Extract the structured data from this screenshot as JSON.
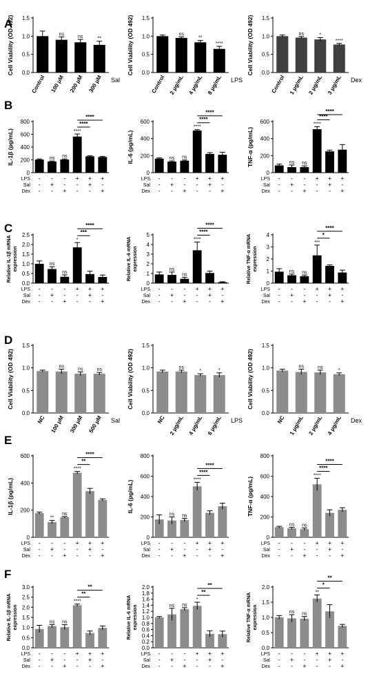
{
  "panel_letters": [
    "A",
    "B",
    "C",
    "D",
    "E",
    "F"
  ],
  "condition_row_labels": [
    "LPS",
    "Sal",
    "Dex"
  ],
  "condition_groups": [
    [
      "-",
      "-",
      "-"
    ],
    [
      "-",
      "+",
      "-"
    ],
    [
      "-",
      "-",
      "+"
    ],
    [
      "+",
      "-",
      "-"
    ],
    [
      "+",
      "+",
      "-"
    ],
    [
      "+",
      "-",
      "+"
    ]
  ],
  "colors": {
    "dark_bars": "#000000",
    "gray_bars": "#8c8c8c",
    "dex_bars_A": "#404040"
  },
  "chart_data": [
    {
      "type": "bar",
      "ylabel": "Cell Viability (OD 492)",
      "ylim": [
        0,
        1.5
      ],
      "yticks": [
        0,
        0.5,
        1.0,
        1.5
      ],
      "ytick_labels": [
        "0.0",
        "0.5",
        "1.0",
        "1.5"
      ],
      "agent": "Sal",
      "categories": [
        "Control",
        "100 μM",
        "200 μM",
        "300 μM"
      ],
      "values": [
        1.0,
        0.9,
        0.83,
        0.76
      ],
      "errors": [
        0.14,
        0.08,
        0.08,
        0.1
      ],
      "sig": [
        "",
        "ns",
        "ns",
        "**"
      ]
    },
    {
      "type": "bar",
      "ylabel": "Cell Viability (OD 492)",
      "ylim": [
        0,
        1.5
      ],
      "yticks": [
        0,
        0.5,
        1.0,
        1.5
      ],
      "ytick_labels": [
        "0.0",
        "0.5",
        "1.0",
        "1.5"
      ],
      "agent": "LPS",
      "categories": [
        "Control",
        "2 μg/mL",
        "4 μg/mL",
        "8 μg/mL"
      ],
      "values": [
        1.0,
        0.95,
        0.83,
        0.65
      ],
      "errors": [
        0.03,
        0.03,
        0.05,
        0.07
      ],
      "sig": [
        "",
        "ns",
        "**",
        "****"
      ]
    },
    {
      "type": "bar",
      "ylabel": "Cell Viability (OD 492)",
      "ylim": [
        0,
        1.5
      ],
      "yticks": [
        0,
        0.5,
        1.0,
        1.5
      ],
      "ytick_labels": [
        "0.0",
        "0.5",
        "1.0",
        "1.5"
      ],
      "agent": "Dex",
      "categories": [
        "Control",
        "1 μg/mL",
        "2 μg/mL",
        "3 μg/mL"
      ],
      "values": [
        1.0,
        0.96,
        0.91,
        0.77
      ],
      "errors": [
        0.03,
        0.03,
        0.05,
        0.03
      ],
      "sig": [
        "",
        "ns",
        "*",
        "****"
      ]
    },
    {
      "type": "bar",
      "ylabel": "IL-1β (pg/mL)",
      "ylim": [
        0,
        800
      ],
      "yticks": [
        0,
        200,
        400,
        600,
        800
      ],
      "ytick_labels": [
        "0",
        "200",
        "400",
        "600",
        "800"
      ],
      "values": [
        205,
        175,
        205,
        565,
        255,
        245
      ],
      "errors": [
        10,
        8,
        10,
        40,
        10,
        10
      ],
      "sig": [
        "",
        "ns",
        "ns",
        "****",
        "",
        ""
      ],
      "brackets": [
        [
          "****",
          3,
          4
        ],
        [
          "****",
          3,
          5
        ]
      ]
    },
    {
      "type": "bar",
      "ylabel": "IL-6 (pg/mL)",
      "ylim": [
        0,
        600
      ],
      "yticks": [
        0,
        200,
        400,
        600
      ],
      "ytick_labels": [
        "0",
        "200",
        "400",
        "600"
      ],
      "values": [
        165,
        130,
        140,
        495,
        220,
        210
      ],
      "errors": [
        8,
        8,
        8,
        10,
        15,
        30
      ],
      "sig": [
        "",
        "ns",
        "ns",
        "****",
        "",
        ""
      ],
      "brackets": [
        [
          "****",
          3,
          4
        ],
        [
          "****",
          3,
          5
        ]
      ]
    },
    {
      "type": "bar",
      "ylabel": "TNF-α (pg/mL)",
      "ylim": [
        0,
        600
      ],
      "yticks": [
        0,
        200,
        400,
        600
      ],
      "ytick_labels": [
        "0",
        "200",
        "400",
        "600"
      ],
      "values": [
        85,
        65,
        65,
        510,
        250,
        270
      ],
      "errors": [
        15,
        25,
        15,
        30,
        15,
        60
      ],
      "sig": [
        "",
        "ns",
        "ns",
        "****",
        "",
        ""
      ],
      "brackets": [
        [
          "****",
          3,
          4
        ],
        [
          "****",
          3,
          5
        ]
      ]
    },
    {
      "type": "bar",
      "ylabel": "Relative IL-1β mRNA expression",
      "ylim": [
        0,
        2.5
      ],
      "yticks": [
        0,
        0.5,
        1.0,
        1.5,
        2.0,
        2.5
      ],
      "ytick_labels": [
        "0.0",
        "0.5",
        "1.0",
        "1.5",
        "2.0",
        "2.5"
      ],
      "values": [
        1.0,
        0.73,
        0.33,
        1.85,
        0.47,
        0.32
      ],
      "errors": [
        0.15,
        0.12,
        0.1,
        0.25,
        0.15,
        0.1
      ],
      "sig": [
        "",
        "ns",
        "ns",
        "*",
        "",
        ""
      ],
      "brackets": [
        [
          "***",
          3,
          4
        ],
        [
          "****",
          3,
          5
        ]
      ]
    },
    {
      "type": "bar",
      "ylabel": "Relative IL-6 mRNA expression",
      "ylim": [
        0,
        5
      ],
      "yticks": [
        0,
        1,
        2,
        3,
        4,
        5
      ],
      "ytick_labels": [
        "0",
        "1",
        "2",
        "3",
        "4",
        "5"
      ],
      "values": [
        0.9,
        0.85,
        0.45,
        3.4,
        1.05,
        0.1
      ],
      "errors": [
        0.25,
        0.3,
        0.15,
        0.85,
        0.2,
        0.05
      ],
      "sig": [
        "",
        "ns",
        "ns",
        "****",
        "",
        ""
      ],
      "brackets": [
        [
          "****",
          3,
          4
        ],
        [
          "****",
          3,
          5
        ]
      ]
    },
    {
      "type": "bar",
      "ylabel": "Relative TNF-α mRNA expression",
      "ylim": [
        0,
        4
      ],
      "yticks": [
        0,
        1,
        2,
        3,
        4
      ],
      "ytick_labels": [
        "0",
        "1",
        "2",
        "3",
        "4"
      ],
      "values": [
        0.95,
        0.65,
        0.57,
        2.3,
        1.43,
        0.88
      ],
      "errors": [
        0.25,
        0.1,
        0.1,
        0.85,
        0.08,
        0.2
      ],
      "sig": [
        "",
        "ns",
        "ns",
        "***",
        "",
        ""
      ],
      "brackets": [
        [
          "*",
          3,
          4
        ],
        [
          "****",
          3,
          5
        ]
      ]
    },
    {
      "type": "bar",
      "ylabel": "Cell Viability (OD 492)",
      "ylim": [
        0,
        1.5
      ],
      "yticks": [
        0,
        0.5,
        1.0,
        1.5
      ],
      "ytick_labels": [
        "0.0",
        "0.5",
        "1.0",
        "1.5"
      ],
      "agent": "Sal",
      "categories": [
        "NC",
        "100 μM",
        "300 μM",
        "500 μM"
      ],
      "values": [
        0.93,
        0.92,
        0.87,
        0.87
      ],
      "errors": [
        0.02,
        0.05,
        0.04,
        0.03
      ],
      "sig": [
        "",
        "ns",
        "ns",
        "ns"
      ]
    },
    {
      "type": "bar",
      "ylabel": "Cell Viability (OD 492)",
      "ylim": [
        0,
        1.5
      ],
      "yticks": [
        0,
        0.5,
        1.0,
        1.5
      ],
      "ytick_labels": [
        "0.0",
        "0.5",
        "1.0",
        "1.5"
      ],
      "agent": "LPS",
      "categories": [
        "NC",
        "2 μg/mL",
        "4 μg/mL",
        "6 μg/mL"
      ],
      "values": [
        0.92,
        0.92,
        0.84,
        0.84
      ],
      "errors": [
        0.03,
        0.03,
        0.03,
        0.05
      ],
      "sig": [
        "",
        "ns",
        "*",
        "*"
      ]
    },
    {
      "type": "bar",
      "ylabel": "Cell Viability (OD 492)",
      "ylim": [
        0,
        1.5
      ],
      "yticks": [
        0,
        0.5,
        1.0,
        1.5
      ],
      "ytick_labels": [
        "0.0",
        "0.5",
        "1.0",
        "1.5"
      ],
      "agent": "Dex",
      "categories": [
        "NC",
        "1 μg/mL",
        "2 μg/mL",
        "4 μg/mL"
      ],
      "values": [
        0.94,
        0.91,
        0.9,
        0.86
      ],
      "errors": [
        0.03,
        0.06,
        0.05,
        0.03
      ],
      "sig": [
        "",
        "ns",
        "ns",
        "*"
      ]
    },
    {
      "type": "bar",
      "ylabel": "IL-1β (pg/mL)",
      "ylim": [
        0,
        600
      ],
      "yticks": [
        0,
        200,
        400,
        600
      ],
      "ytick_labels": [
        "0",
        "200",
        "400",
        "600"
      ],
      "values": [
        178,
        112,
        148,
        475,
        340,
        275
      ],
      "errors": [
        8,
        12,
        5,
        10,
        20,
        8
      ],
      "sig": [
        "",
        "**",
        "ns",
        "****",
        "",
        ""
      ],
      "brackets": [
        [
          "**",
          3,
          4
        ],
        [
          "****",
          3,
          5
        ]
      ]
    },
    {
      "type": "bar",
      "ylabel": "IL-6 (pg/mL)",
      "ylim": [
        0,
        800
      ],
      "yticks": [
        0,
        200,
        400,
        600,
        800
      ],
      "ytick_labels": [
        "0",
        "200",
        "400",
        "600",
        "800"
      ],
      "values": [
        175,
        165,
        170,
        500,
        240,
        305
      ],
      "errors": [
        45,
        35,
        15,
        40,
        20,
        30
      ],
      "sig": [
        "",
        "ns",
        "ns",
        "****",
        "",
        ""
      ],
      "brackets": [
        [
          "****",
          3,
          4
        ],
        [
          "****",
          3,
          5
        ]
      ]
    },
    {
      "type": "bar",
      "ylabel": "TNF-α (pg/mL)",
      "ylim": [
        0,
        800
      ],
      "yticks": [
        0,
        200,
        400,
        600,
        800
      ],
      "ytick_labels": [
        "0",
        "200",
        "400",
        "600",
        "800"
      ],
      "values": [
        100,
        88,
        80,
        520,
        240,
        270
      ],
      "errors": [
        8,
        10,
        12,
        60,
        30,
        20
      ],
      "sig": [
        "",
        "ns",
        "ns",
        "****",
        "",
        ""
      ],
      "brackets": [
        [
          "****",
          3,
          4
        ],
        [
          "****",
          3,
          5
        ]
      ]
    },
    {
      "type": "bar",
      "ylabel": "Relative IL-1β mRNA expression",
      "ylim": [
        0,
        3.0
      ],
      "yticks": [
        0,
        0.5,
        1.0,
        1.5,
        2.0,
        2.5,
        3.0
      ],
      "ytick_labels": [
        "0.0",
        "0.5",
        "1.0",
        "1.5",
        "2.0",
        "2.5",
        "3.0"
      ],
      "values": [
        0.93,
        1.07,
        1.02,
        2.1,
        0.73,
        0.98
      ],
      "errors": [
        0.18,
        0.08,
        0.12,
        0.06,
        0.1,
        0.1
      ],
      "sig": [
        "",
        "ns",
        "ns",
        "****",
        "",
        ""
      ],
      "brackets": [
        [
          "**",
          3,
          4
        ],
        [
          "**",
          3,
          5
        ]
      ]
    },
    {
      "type": "bar",
      "ylabel": "Relative IL-6 mRNA expression",
      "ylim": [
        0,
        2.0
      ],
      "yticks": [
        0,
        0.2,
        0.4,
        0.6,
        0.8,
        1.0,
        1.2,
        1.4,
        1.6,
        1.8,
        2.0
      ],
      "ytick_labels": [
        "0.0",
        "0.2",
        "0.4",
        "0.6",
        "0.8",
        "1.0",
        "1.2",
        "1.4",
        "1.6",
        "1.8",
        "2.0"
      ],
      "values": [
        1.0,
        1.1,
        1.27,
        1.38,
        0.46,
        0.45
      ],
      "errors": [
        0.03,
        0.2,
        0.05,
        0.12,
        0.1,
        0.1
      ],
      "sig": [
        "",
        "ns",
        "ns",
        "*",
        "",
        ""
      ],
      "brackets": [
        [
          "**",
          3,
          4
        ],
        [
          "**",
          3,
          5
        ]
      ]
    },
    {
      "type": "bar",
      "ylabel": "Relative TNF-α mRNA expression",
      "ylim": [
        0,
        2.0
      ],
      "yticks": [
        0,
        0.5,
        1.0,
        1.5,
        2.0
      ],
      "ytick_labels": [
        "0.0",
        "0.5",
        "1.0",
        "1.5",
        "2.0"
      ],
      "values": [
        1.0,
        0.97,
        0.96,
        1.62,
        1.2,
        0.72
      ],
      "errors": [
        0.06,
        0.12,
        0.07,
        0.12,
        0.22,
        0.05
      ],
      "sig": [
        "",
        "ns",
        "ns",
        "**",
        "",
        ""
      ],
      "brackets": [
        [
          "*",
          3,
          4
        ],
        [
          "**",
          3,
          5
        ]
      ]
    }
  ]
}
